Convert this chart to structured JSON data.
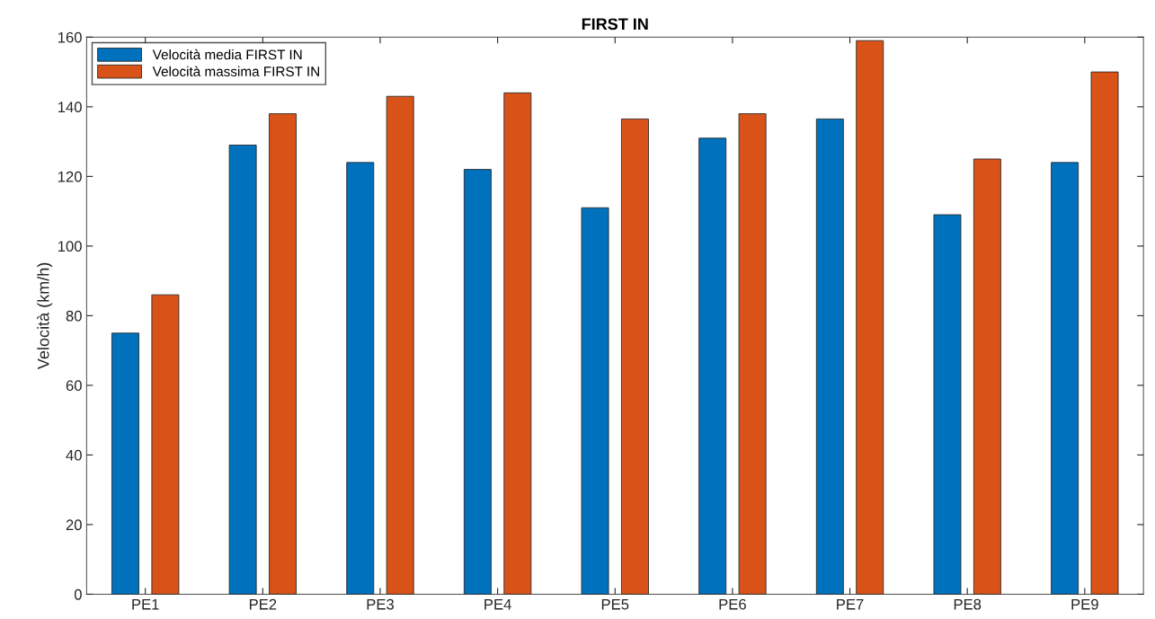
{
  "chart_data": {
    "type": "bar",
    "title": "FIRST IN",
    "ylabel": "Velocità (km/h)",
    "categories": [
      "PE1",
      "PE2",
      "PE3",
      "PE4",
      "PE5",
      "PE6",
      "PE7",
      "PE8",
      "PE9"
    ],
    "series": [
      {
        "name": "Velocità media FIRST IN",
        "color": "#0072bd",
        "values": [
          75,
          129,
          124,
          122,
          111,
          131,
          136.5,
          109,
          124
        ]
      },
      {
        "name": "Velocità massima FIRST IN",
        "color": "#d95319",
        "values": [
          86,
          138,
          143,
          144,
          136.5,
          138,
          159,
          125,
          150
        ]
      }
    ],
    "ylim": [
      0,
      160
    ],
    "yticks": [
      0,
      20,
      40,
      60,
      80,
      100,
      120,
      140,
      160
    ],
    "grid": false,
    "legend": "top left"
  }
}
